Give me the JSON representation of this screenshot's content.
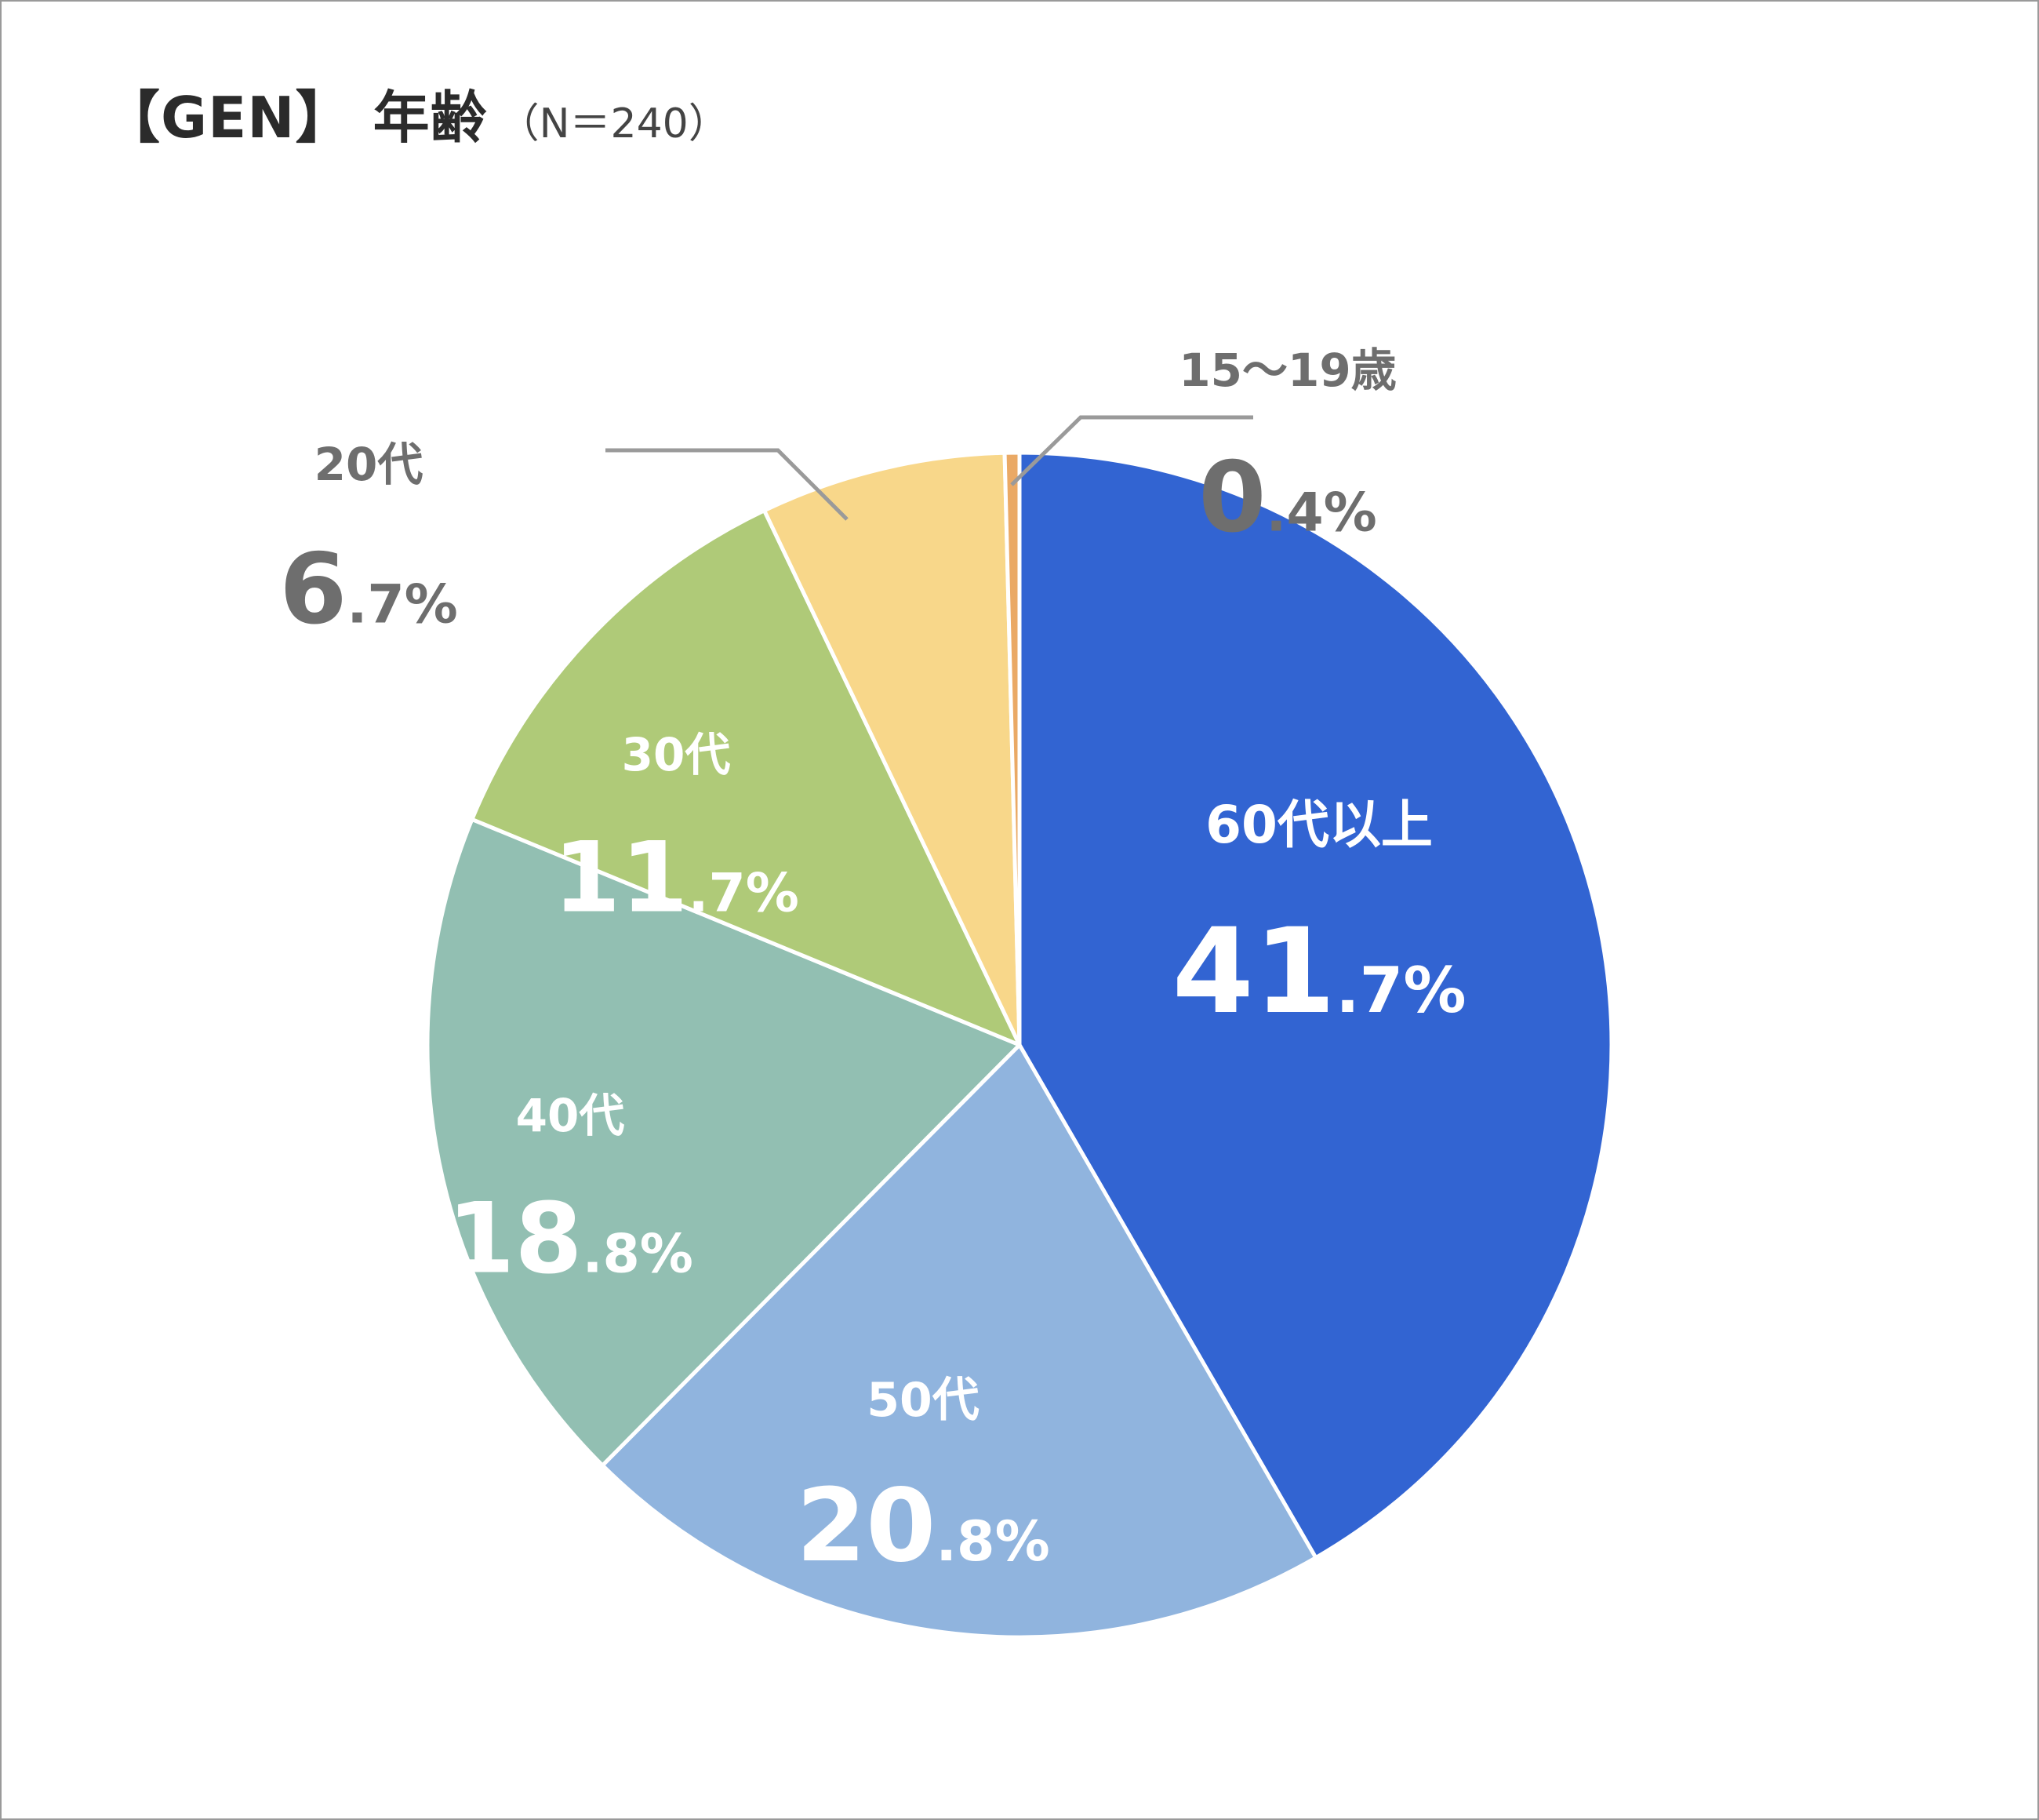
{
  "title": {
    "main": "【GEN】 年齢",
    "sub": "（N＝240）"
  },
  "chart_data": {
    "type": "pie",
    "start_angle_deg": 0,
    "direction": "clockwise",
    "legend": "none",
    "slices": [
      {
        "label": "60代以上",
        "int": "41",
        "dec": ".7%",
        "value": 41.7,
        "color": "#3264d2",
        "text_color": "#ffffff",
        "label_position": "inside"
      },
      {
        "label": "50代",
        "int": "20",
        "dec": ".8%",
        "value": 20.8,
        "color": "#90b4de",
        "text_color": "#ffffff",
        "label_position": "inside"
      },
      {
        "label": "40代",
        "int": "18",
        "dec": ".8%",
        "value": 18.8,
        "color": "#92bfb2",
        "text_color": "#ffffff",
        "label_position": "inside"
      },
      {
        "label": "30代",
        "int": "11",
        "dec": ".7%",
        "value": 11.7,
        "color": "#afca78",
        "text_color": "#ffffff",
        "label_position": "inside"
      },
      {
        "label": "20代",
        "int": "6",
        "dec": ".7%",
        "value": 6.7,
        "color": "#f8d78a",
        "text_color": "#6e6e6e",
        "label_position": "outside"
      },
      {
        "label": "15〜19歳",
        "int": "0",
        "dec": ".4%",
        "value": 0.4,
        "color": "#eaa965",
        "text_color": "#6e6e6e",
        "label_position": "outside"
      }
    ]
  }
}
